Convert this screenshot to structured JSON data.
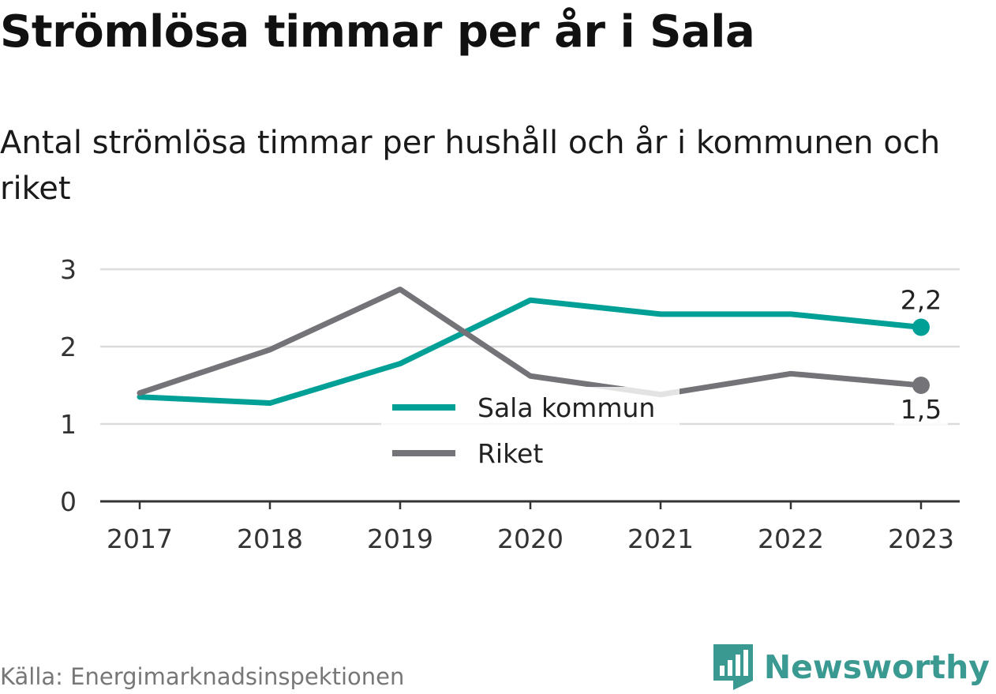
{
  "chart_data": {
    "type": "line",
    "title": "Strömlösa timmar per år i Sala",
    "subtitle": "Antal strömlösa timmar per hushåll och år i kommunen och riket",
    "categories": [
      "2017",
      "2018",
      "2019",
      "2020",
      "2021",
      "2022",
      "2023"
    ],
    "series": [
      {
        "name": "Sala kommun",
        "color": "#00a096",
        "values": [
          1.35,
          1.27,
          1.78,
          2.6,
          2.42,
          2.42,
          2.25
        ],
        "end_label": "2,2"
      },
      {
        "name": "Riket",
        "color": "#747478",
        "values": [
          1.4,
          1.96,
          2.74,
          1.62,
          1.38,
          1.65,
          1.5
        ],
        "end_label": "1,5"
      }
    ],
    "yticks": [
      "0",
      "1",
      "2",
      "3"
    ],
    "ylim": [
      0,
      3
    ],
    "grid": true,
    "legend_position": "center-bottom"
  },
  "source": "Källa: Energimarknadsinspektionen",
  "brand": {
    "name": "Newsworthy",
    "icon": "newsworthy-logo-icon",
    "color": "#3a9a92"
  }
}
